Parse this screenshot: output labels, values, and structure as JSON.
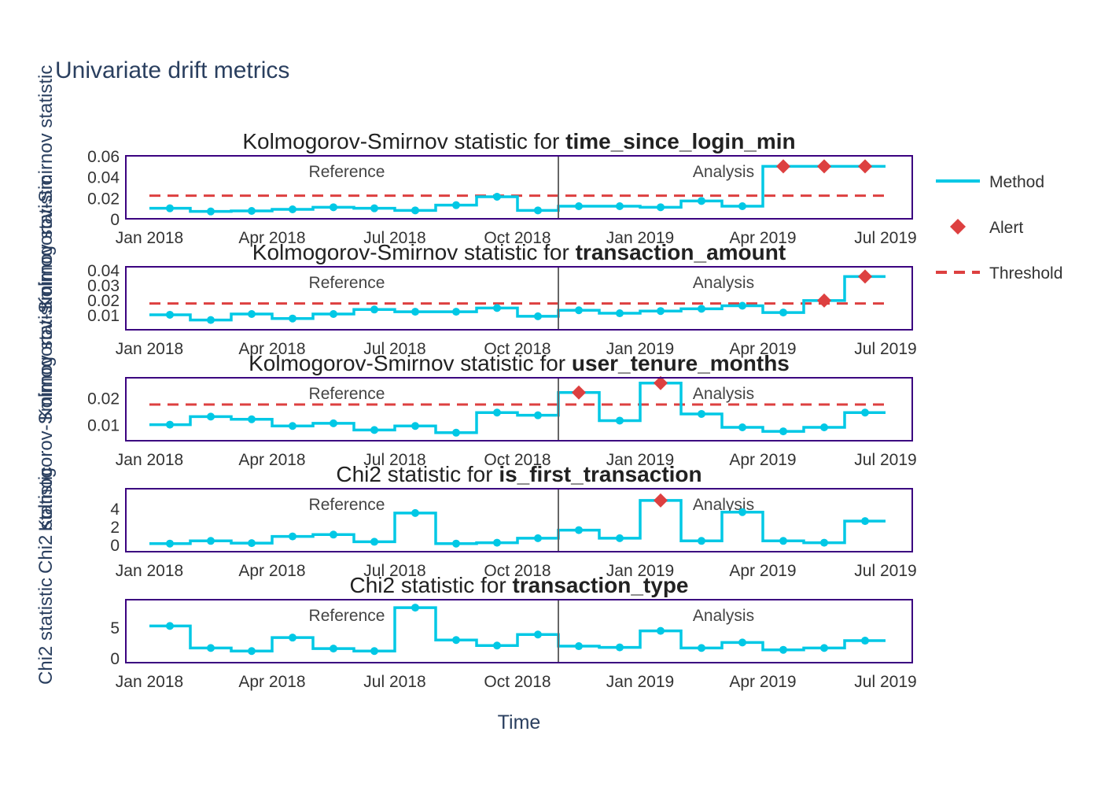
{
  "title": "Univariate drift metrics",
  "x_axis_label": "Time",
  "x_tick_labels": [
    "Jan 2018",
    "Apr 2018",
    "Jul 2018",
    "Oct 2018",
    "Jan 2019",
    "Apr 2019",
    "Jul 2019"
  ],
  "period_labels": {
    "reference": "Reference",
    "analysis": "Analysis"
  },
  "legend": [
    {
      "name": "Method",
      "color": "#00c8e5",
      "symbol": "line"
    },
    {
      "name": "Alert",
      "color": "#dd4040",
      "symbol": "diamond"
    },
    {
      "name": "Threshold",
      "color": "#dd4040",
      "symbol": "dash"
    }
  ],
  "colors": {
    "method": "#00c8e5",
    "alert": "#dd4040",
    "threshold": "#dd4040",
    "frame": "#3b0280",
    "divider": "#666666",
    "text": "#2a3f5f"
  },
  "chart_data": [
    {
      "type": "line",
      "title_prefix": "Kolmogorov-Smirnov statistic for ",
      "title_bold": "time_since_login_min",
      "ylabel": "Kolmogorov-Smirnov statistic",
      "ylim": [
        0,
        0.06
      ],
      "yticks": [
        0,
        0.02,
        0.04,
        0.06
      ],
      "ytick_labels": [
        "0",
        "0.02",
        "0.04",
        "0.06"
      ],
      "threshold": 0.022,
      "x": [
        "2018-01",
        "2018-02",
        "2018-03",
        "2018-04",
        "2018-05",
        "2018-06",
        "2018-07",
        "2018-08",
        "2018-09",
        "2018-10",
        "2018-11",
        "2018-12",
        "2019-01",
        "2019-02",
        "2019-03",
        "2019-04",
        "2019-05",
        "2019-06"
      ],
      "values": [
        0.01,
        0.007,
        0.0075,
        0.009,
        0.011,
        0.01,
        0.008,
        0.013,
        0.021,
        0.008,
        0.012,
        0.012,
        0.011,
        0.017,
        0.012,
        0.05,
        0.05,
        0.05
      ],
      "alerts": [
        false,
        false,
        false,
        false,
        false,
        false,
        false,
        false,
        false,
        false,
        false,
        false,
        false,
        false,
        false,
        true,
        true,
        true
      ]
    },
    {
      "type": "line",
      "title_prefix": "Kolmogorov-Smirnov statistic for ",
      "title_bold": "transaction_amount",
      "ylabel": "Kolmogorov-Smirnov statistic",
      "ylim": [
        0,
        0.042
      ],
      "yticks": [
        0.01,
        0.02,
        0.03,
        0.04
      ],
      "ytick_labels": [
        "0.01",
        "0.02",
        "0.03",
        "0.04"
      ],
      "threshold": 0.0175,
      "x": [
        "2018-01",
        "2018-02",
        "2018-03",
        "2018-04",
        "2018-05",
        "2018-06",
        "2018-07",
        "2018-08",
        "2018-09",
        "2018-10",
        "2018-11",
        "2018-12",
        "2019-01",
        "2019-02",
        "2019-03",
        "2019-04",
        "2019-05",
        "2019-06"
      ],
      "values": [
        0.01,
        0.0065,
        0.0105,
        0.0075,
        0.0105,
        0.0135,
        0.012,
        0.012,
        0.0145,
        0.009,
        0.013,
        0.011,
        0.0125,
        0.014,
        0.016,
        0.0115,
        0.0195,
        0.0355
      ],
      "alerts": [
        false,
        false,
        false,
        false,
        false,
        false,
        false,
        false,
        false,
        false,
        false,
        false,
        false,
        false,
        false,
        false,
        true,
        true
      ]
    },
    {
      "type": "line",
      "title_prefix": "Kolmogorov-Smirnov statistic for ",
      "title_bold": "user_tenure_months",
      "ylabel": "Kolmogorov-Smirnov statistic",
      "ylim": [
        0.004,
        0.0275
      ],
      "yticks": [
        0.01,
        0.02
      ],
      "ytick_labels": [
        "0.01",
        "0.02"
      ],
      "threshold": 0.0175,
      "x": [
        "2018-01",
        "2018-02",
        "2018-03",
        "2018-04",
        "2018-05",
        "2018-06",
        "2018-07",
        "2018-08",
        "2018-09",
        "2018-10",
        "2018-11",
        "2018-12",
        "2019-01",
        "2019-02",
        "2019-03",
        "2019-04",
        "2019-05",
        "2019-06"
      ],
      "values": [
        0.01,
        0.013,
        0.012,
        0.0095,
        0.0105,
        0.008,
        0.0095,
        0.007,
        0.0145,
        0.0135,
        0.022,
        0.0115,
        0.0255,
        0.014,
        0.009,
        0.0075,
        0.009,
        0.0145
      ],
      "alerts": [
        false,
        false,
        false,
        false,
        false,
        false,
        false,
        false,
        false,
        false,
        true,
        false,
        true,
        false,
        false,
        false,
        false,
        false
      ]
    },
    {
      "type": "line",
      "title_prefix": "Chi2 statistic for ",
      "title_bold": "is_first_transaction",
      "ylabel": "Chi2 statistic",
      "ylim": [
        -0.8,
        6.2
      ],
      "yticks": [
        0,
        2,
        4
      ],
      "ytick_labels": [
        "0",
        "2",
        "4"
      ],
      "threshold": null,
      "x": [
        "2018-01",
        "2018-02",
        "2018-03",
        "2018-04",
        "2018-05",
        "2018-06",
        "2018-07",
        "2018-08",
        "2018-09",
        "2018-10",
        "2018-11",
        "2018-12",
        "2019-01",
        "2019-02",
        "2019-03",
        "2019-04",
        "2019-05",
        "2019-06"
      ],
      "values": [
        0.1,
        0.4,
        0.15,
        0.9,
        1.1,
        0.3,
        3.5,
        0.1,
        0.2,
        0.7,
        1.6,
        0.7,
        4.9,
        0.4,
        3.6,
        0.4,
        0.2,
        2.6
      ],
      "alerts": [
        false,
        false,
        false,
        false,
        false,
        false,
        false,
        false,
        false,
        false,
        false,
        false,
        true,
        false,
        false,
        false,
        false,
        false
      ]
    },
    {
      "type": "line",
      "title_prefix": "Chi2 statistic for ",
      "title_bold": "transaction_type",
      "ylabel": "Chi2 statistic",
      "ylim": [
        -0.8,
        9.5
      ],
      "yticks": [
        0,
        5
      ],
      "ytick_labels": [
        "0",
        "5"
      ],
      "threshold": null,
      "x": [
        "2018-01",
        "2018-02",
        "2018-03",
        "2018-04",
        "2018-05",
        "2018-06",
        "2018-07",
        "2018-08",
        "2018-09",
        "2018-10",
        "2018-11",
        "2018-12",
        "2019-01",
        "2019-02",
        "2019-03",
        "2019-04",
        "2019-05",
        "2019-06"
      ],
      "values": [
        5.2,
        1.6,
        1.1,
        3.3,
        1.5,
        1.1,
        8.2,
        2.9,
        2.0,
        3.8,
        1.9,
        1.7,
        4.4,
        1.6,
        2.5,
        1.3,
        1.6,
        2.8
      ],
      "alerts": [
        false,
        false,
        false,
        false,
        false,
        false,
        false,
        false,
        false,
        false,
        false,
        false,
        false,
        false,
        false,
        false,
        false,
        false
      ]
    }
  ]
}
